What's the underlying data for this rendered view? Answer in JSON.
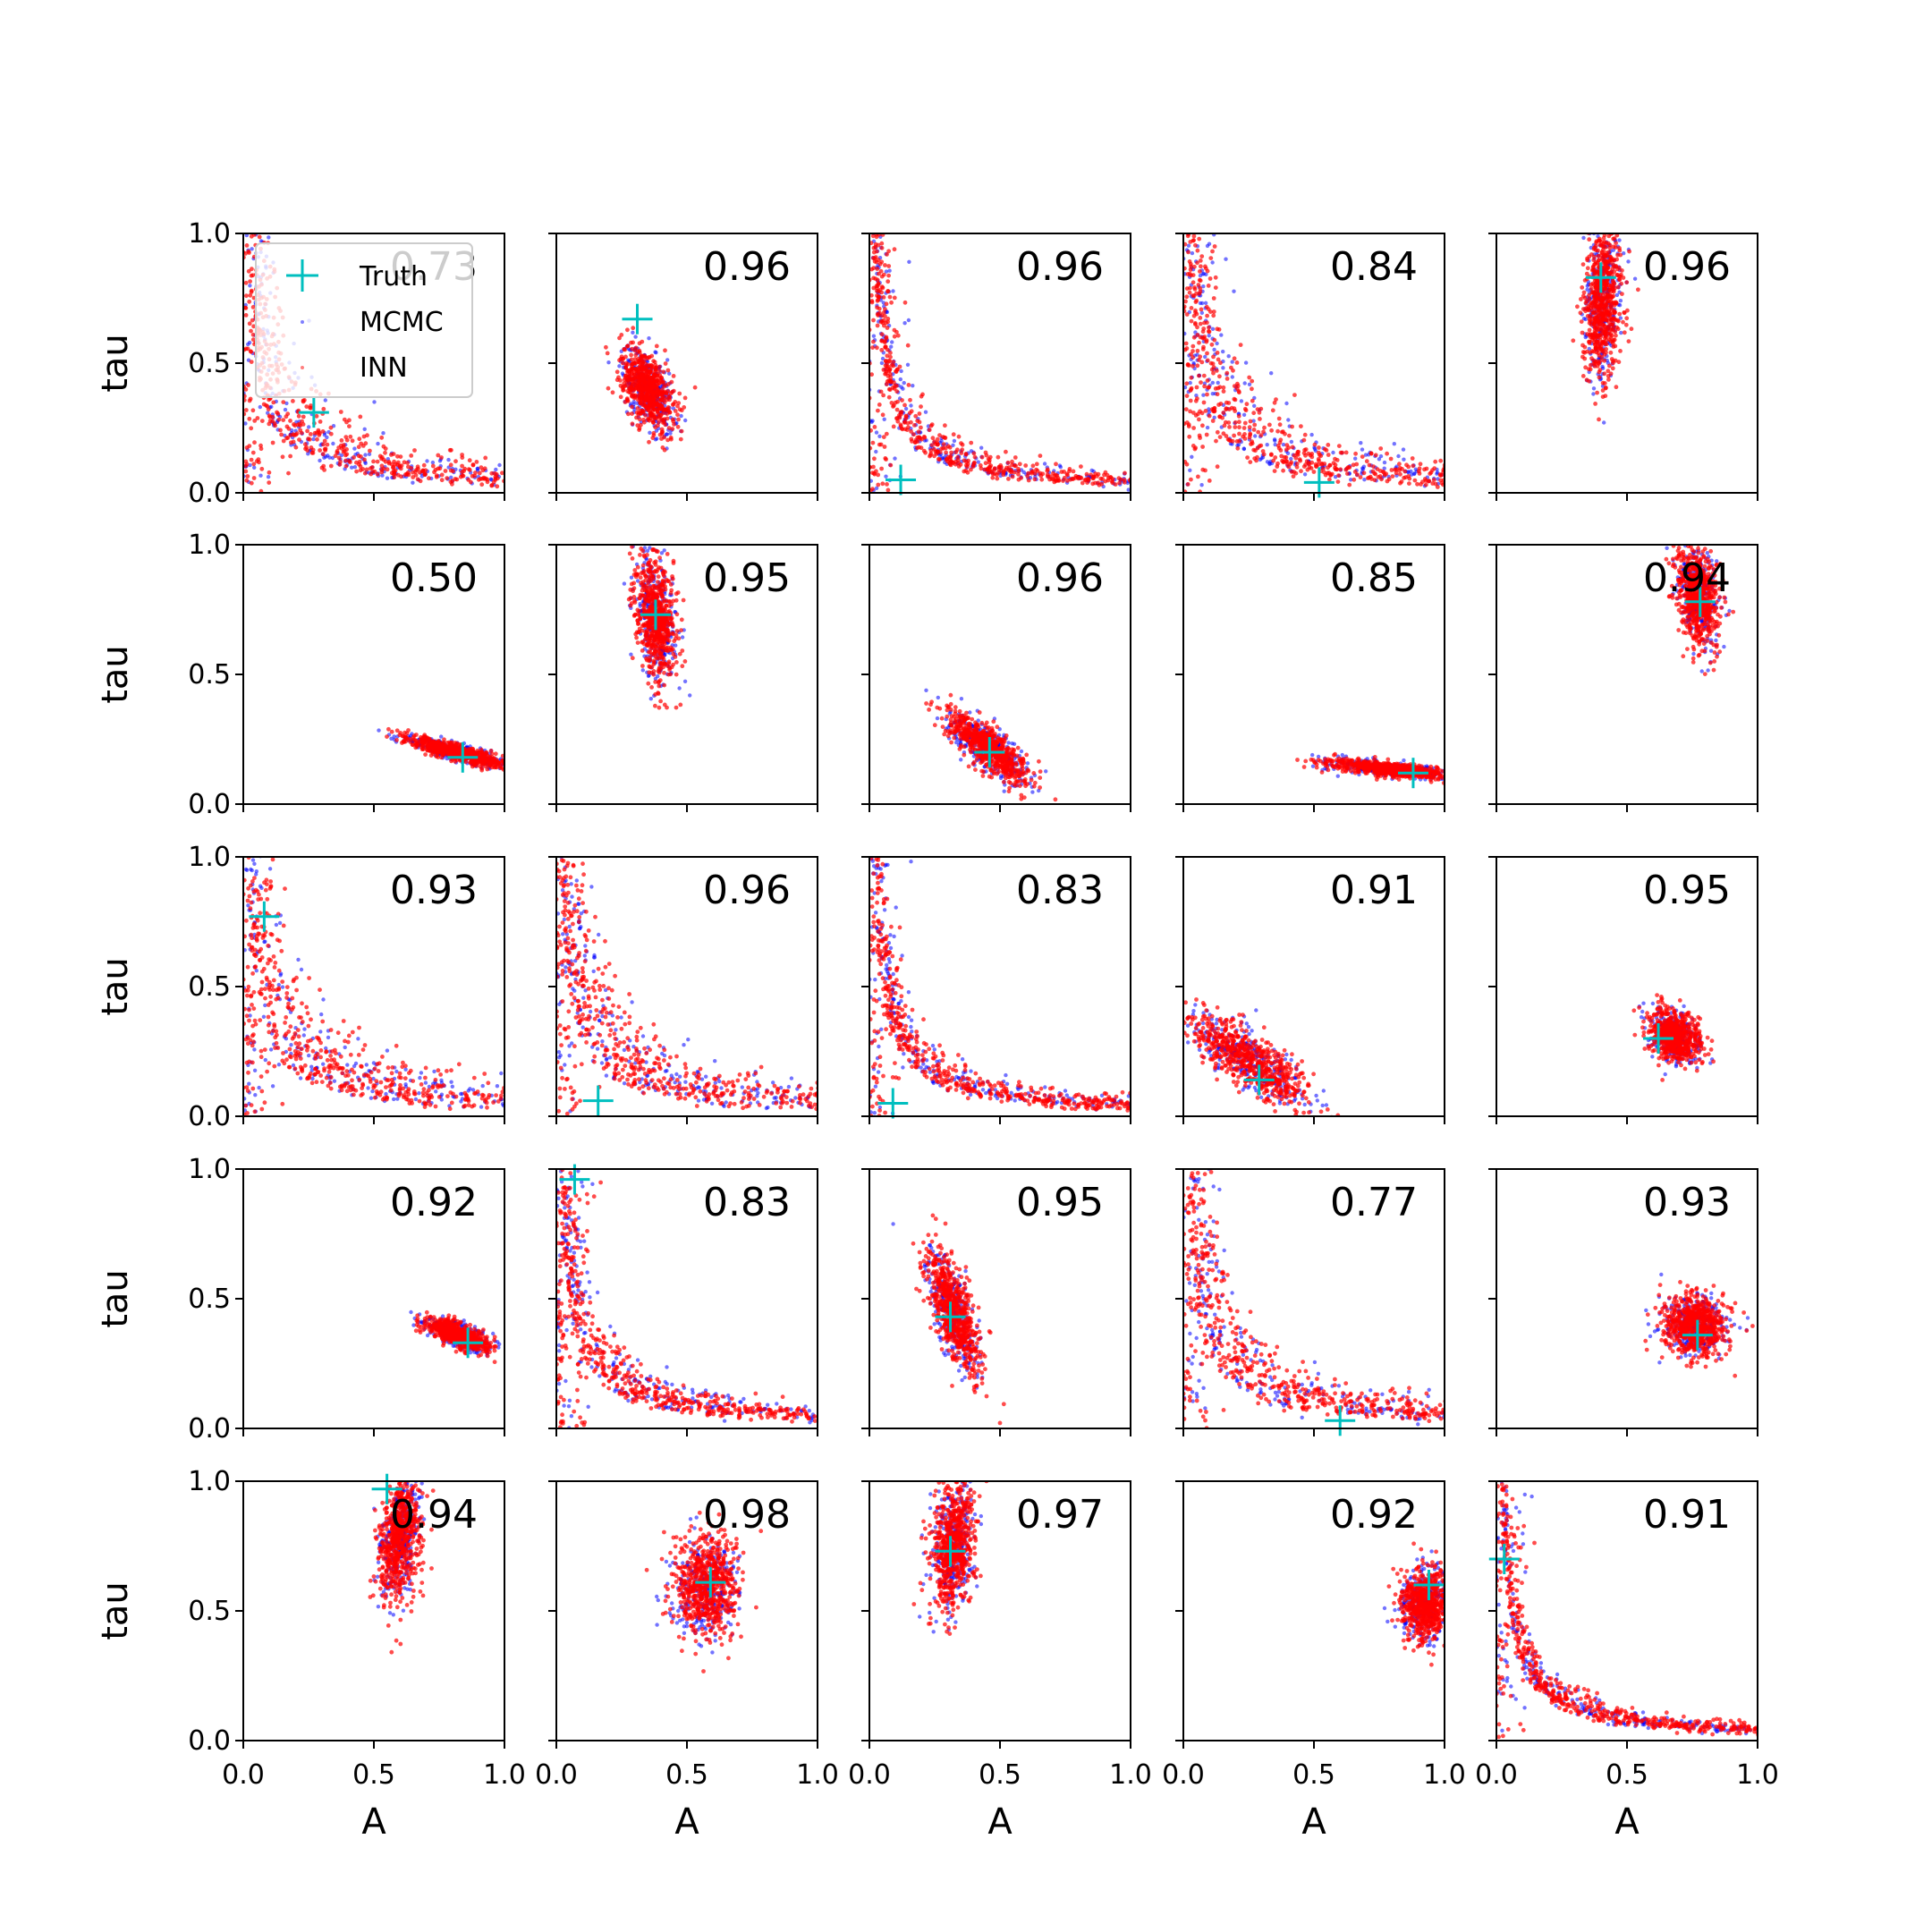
{
  "chart_data": {
    "type": "scatter",
    "grid": false,
    "xlabel": "A",
    "ylabel": "tau",
    "xlim": [
      0,
      1
    ],
    "ylim": [
      0,
      1
    ],
    "xticks": [
      "0.0",
      "0.5",
      "1.0"
    ],
    "yticks": [
      "0.0",
      "0.5",
      "1.0"
    ],
    "legend": {
      "placement": "upper-left",
      "entries": [
        {
          "label": "Truth",
          "marker": "+",
          "color": "#00bfbf"
        },
        {
          "label": "MCMC",
          "marker": "dot",
          "color": "#0000ff"
        },
        {
          "label": "INN",
          "marker": "dot",
          "color": "#ff0000"
        }
      ]
    },
    "colors": {
      "truth": "#00bfbf",
      "mcmc": "#0000ff",
      "inn": "#ff0000"
    },
    "panels": [
      {
        "score": "0.73",
        "truth": [
          0.27,
          0.31
        ],
        "shape": "hyperbola",
        "spread": 0.3
      },
      {
        "score": "0.96",
        "truth": [
          0.31,
          0.67
        ],
        "shape": "blob",
        "center": [
          0.35,
          0.4
        ],
        "sd": [
          0.05,
          0.08
        ],
        "rho": -0.5
      },
      {
        "score": "0.96",
        "truth": [
          0.12,
          0.05
        ],
        "shape": "hyperbola",
        "spread": 0.15
      },
      {
        "score": "0.84",
        "truth": [
          0.52,
          0.04
        ],
        "shape": "hyperbola",
        "spread": 0.35
      },
      {
        "score": "0.96",
        "truth": [
          0.4,
          0.83
        ],
        "shape": "blob",
        "center": [
          0.41,
          0.75
        ],
        "sd": [
          0.035,
          0.15
        ],
        "rho": 0.2
      },
      {
        "score": "0.50",
        "truth": [
          0.84,
          0.18
        ],
        "shape": "blob",
        "center": [
          0.82,
          0.2
        ],
        "sd": [
          0.1,
          0.03
        ],
        "rho": -0.85
      },
      {
        "score": "0.95",
        "truth": [
          0.38,
          0.73
        ],
        "shape": "blob",
        "center": [
          0.38,
          0.72
        ],
        "sd": [
          0.04,
          0.12
        ],
        "rho": -0.3
      },
      {
        "score": "0.96",
        "truth": [
          0.46,
          0.2
        ],
        "shape": "blob",
        "center": [
          0.45,
          0.22
        ],
        "sd": [
          0.08,
          0.07
        ],
        "rho": -0.8
      },
      {
        "score": "0.85",
        "truth": [
          0.88,
          0.12
        ],
        "shape": "blob",
        "center": [
          0.78,
          0.135
        ],
        "sd": [
          0.12,
          0.018
        ],
        "rho": -0.7
      },
      {
        "score": "0.94",
        "truth": [
          0.78,
          0.78
        ],
        "shape": "blob",
        "center": [
          0.77,
          0.8
        ],
        "sd": [
          0.04,
          0.1
        ],
        "rho": -0.3
      },
      {
        "score": "0.93",
        "truth": [
          0.08,
          0.77
        ],
        "shape": "hyperbola",
        "spread": 0.4
      },
      {
        "score": "0.96",
        "truth": [
          0.16,
          0.06
        ],
        "shape": "hyperbola",
        "spread": 0.35
      },
      {
        "score": "0.83",
        "truth": [
          0.09,
          0.05
        ],
        "shape": "hyperbola",
        "spread": 0.15
      },
      {
        "score": "0.91",
        "truth": [
          0.29,
          0.14
        ],
        "shape": "blob",
        "center": [
          0.25,
          0.22
        ],
        "sd": [
          0.12,
          0.09
        ],
        "rho": -0.8
      },
      {
        "score": "0.95",
        "truth": [
          0.62,
          0.3
        ],
        "shape": "blob",
        "center": [
          0.68,
          0.31
        ],
        "sd": [
          0.05,
          0.05
        ],
        "rho": -0.3
      },
      {
        "score": "0.92",
        "truth": [
          0.86,
          0.33
        ],
        "shape": "blob",
        "center": [
          0.82,
          0.36
        ],
        "sd": [
          0.06,
          0.03
        ],
        "rho": -0.7
      },
      {
        "score": "0.83",
        "truth": [
          0.07,
          0.96
        ],
        "shape": "hyperbola",
        "spread": 0.2
      },
      {
        "score": "0.95",
        "truth": [
          0.31,
          0.43
        ],
        "shape": "blob",
        "center": [
          0.32,
          0.45
        ],
        "sd": [
          0.05,
          0.12
        ],
        "rho": -0.7
      },
      {
        "score": "0.77",
        "truth": [
          0.6,
          0.03
        ],
        "shape": "hyperbola",
        "spread": 0.3
      },
      {
        "score": "0.93",
        "truth": [
          0.77,
          0.36
        ],
        "shape": "blob",
        "center": [
          0.76,
          0.4
        ],
        "sd": [
          0.06,
          0.06
        ],
        "rho": 0.0
      },
      {
        "score": "0.94",
        "truth": [
          0.55,
          0.97
        ],
        "shape": "blob",
        "center": [
          0.6,
          0.78
        ],
        "sd": [
          0.04,
          0.12
        ],
        "rho": 0.3
      },
      {
        "score": "0.98",
        "truth": [
          0.59,
          0.61
        ],
        "shape": "blob",
        "center": [
          0.57,
          0.6
        ],
        "sd": [
          0.06,
          0.1
        ],
        "rho": 0.0
      },
      {
        "score": "0.97",
        "truth": [
          0.31,
          0.73
        ],
        "shape": "blob",
        "center": [
          0.32,
          0.76
        ],
        "sd": [
          0.04,
          0.12
        ],
        "rho": 0.2
      },
      {
        "score": "0.92",
        "truth": [
          0.94,
          0.6
        ],
        "shape": "blob",
        "center": [
          0.93,
          0.53
        ],
        "sd": [
          0.05,
          0.07
        ],
        "rho": 0.0
      },
      {
        "score": "0.91",
        "truth": [
          0.03,
          0.7
        ],
        "shape": "hyperbola",
        "spread": 0.1
      }
    ]
  }
}
